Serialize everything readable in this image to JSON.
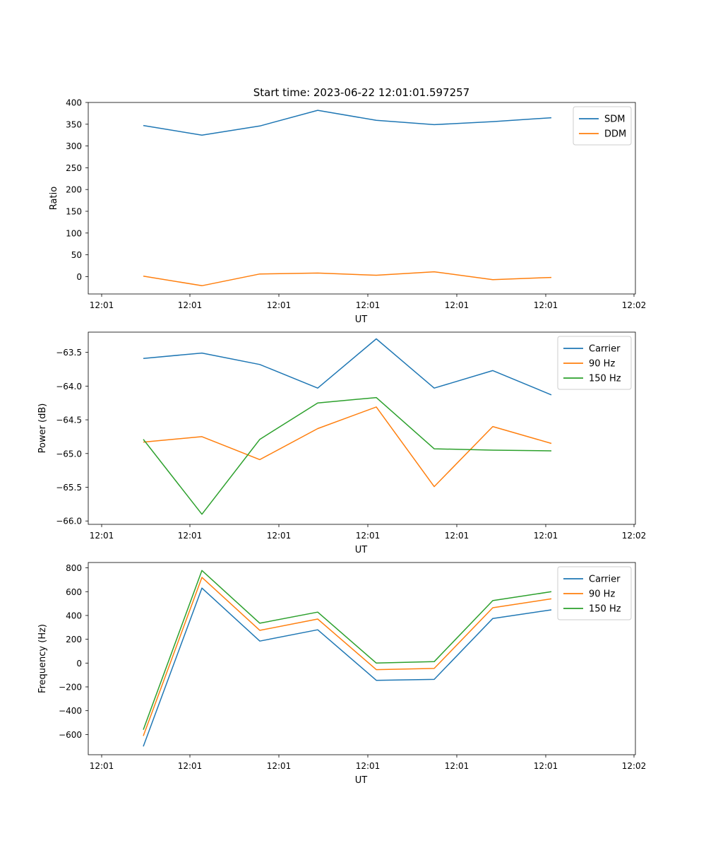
{
  "title": "Start time: 2023-06-22 12:01:01.597257",
  "chart_data": [
    {
      "type": "line",
      "xlabel": "UT",
      "ylabel": "Ratio",
      "x_tick_labels": [
        "12:01",
        "12:01",
        "12:01",
        "12:01",
        "12:01",
        "12:01",
        "12:02"
      ],
      "ylim": [
        -40,
        400
      ],
      "yticks": [
        0,
        50,
        100,
        150,
        200,
        250,
        300,
        350,
        400
      ],
      "ytick_labels": [
        "0",
        "50",
        "100",
        "150",
        "200",
        "250",
        "300",
        "350",
        "400"
      ],
      "legend_position": "top-right",
      "series": [
        {
          "name": "SDM",
          "color": "#1f77b4",
          "values": [
            347,
            325,
            346,
            382,
            359,
            349,
            356,
            365
          ]
        },
        {
          "name": "DDM",
          "color": "#ff7f0e",
          "values": [
            1,
            -21,
            6,
            8,
            3,
            11,
            -7,
            -2
          ]
        }
      ]
    },
    {
      "type": "line",
      "xlabel": "UT",
      "ylabel": "Power (dB)",
      "x_tick_labels": [
        "12:01",
        "12:01",
        "12:01",
        "12:01",
        "12:01",
        "12:01",
        "12:02"
      ],
      "ylim": [
        -66.05,
        -63.2
      ],
      "yticks": [
        -66.0,
        -65.5,
        -65.0,
        -64.5,
        -64.0,
        -63.5
      ],
      "ytick_labels": [
        "−66.0",
        "−65.5",
        "−65.0",
        "−64.5",
        "−64.0",
        "−63.5"
      ],
      "legend_position": "top-right",
      "series": [
        {
          "name": "Carrier",
          "color": "#1f77b4",
          "values": [
            -63.59,
            -63.51,
            -63.68,
            -64.03,
            -63.3,
            -64.03,
            -63.77,
            -64.13
          ]
        },
        {
          "name": "90 Hz",
          "color": "#ff7f0e",
          "values": [
            -64.83,
            -64.75,
            -65.09,
            -64.63,
            -64.31,
            -65.49,
            -64.6,
            -64.85
          ]
        },
        {
          "name": "150 Hz",
          "color": "#2ca02c",
          "values": [
            -64.79,
            -65.9,
            -64.79,
            -64.25,
            -64.17,
            -64.93,
            -64.95,
            -64.96
          ]
        }
      ]
    },
    {
      "type": "line",
      "xlabel": "UT",
      "ylabel": "Frequency (Hz)",
      "x_tick_labels": [
        "12:01",
        "12:01",
        "12:01",
        "12:01",
        "12:01",
        "12:01",
        "12:02"
      ],
      "ylim": [
        -770,
        845
      ],
      "yticks": [
        -600,
        -400,
        -200,
        0,
        200,
        400,
        600,
        800
      ],
      "ytick_labels": [
        "−600",
        "−400",
        "−200",
        "0",
        "200",
        "400",
        "600",
        "800"
      ],
      "legend_position": "top-right",
      "series": [
        {
          "name": "Carrier",
          "color": "#1f77b4",
          "values": [
            -700,
            630,
            185,
            280,
            -145,
            -137,
            375,
            447
          ]
        },
        {
          "name": "90 Hz",
          "color": "#ff7f0e",
          "values": [
            -612,
            720,
            275,
            370,
            -55,
            -45,
            465,
            540
          ]
        },
        {
          "name": "150 Hz",
          "color": "#2ca02c",
          "values": [
            -560,
            778,
            335,
            428,
            0,
            12,
            525,
            600
          ]
        }
      ]
    }
  ]
}
